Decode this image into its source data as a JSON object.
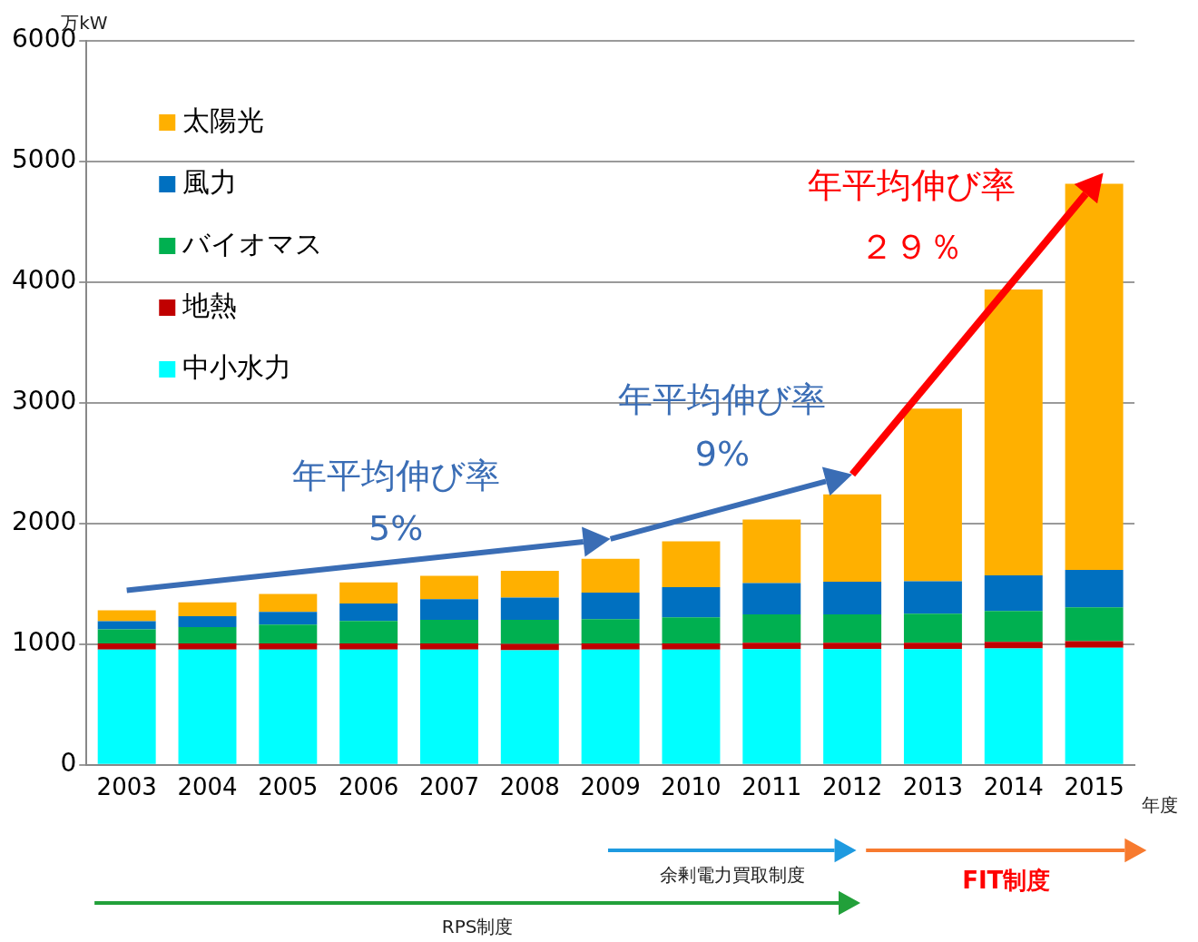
{
  "chart_data": {
    "type": "bar",
    "stacked": true,
    "categories": [
      "2003",
      "2004",
      "2005",
      "2006",
      "2007",
      "2008",
      "2009",
      "2010",
      "2011",
      "2012",
      "2013",
      "2014",
      "2015"
    ],
    "x_label": "年度",
    "y_label": "万kW",
    "ylim": [
      0,
      6000
    ],
    "yticks": [
      0,
      1000,
      2000,
      3000,
      4000,
      5000,
      6000
    ],
    "grid": true,
    "legend": "top-left",
    "series": [
      {
        "name": "中小水力",
        "color": "#00ffff",
        "values": [
          955,
          955,
          955,
          955,
          955,
          950,
          955,
          955,
          960,
          960,
          960,
          965,
          970
        ]
      },
      {
        "name": "地熱",
        "color": "#c00000",
        "values": [
          52,
          52,
          52,
          52,
          52,
          52,
          52,
          52,
          52,
          52,
          52,
          55,
          55
        ]
      },
      {
        "name": "バイオマス",
        "color": "#00b050",
        "values": [
          115,
          135,
          155,
          185,
          195,
          200,
          200,
          215,
          235,
          235,
          240,
          255,
          280
        ]
      },
      {
        "name": "風力",
        "color": "#0070c0",
        "values": [
          68,
          90,
          105,
          145,
          170,
          185,
          220,
          250,
          260,
          270,
          270,
          295,
          310
        ]
      },
      {
        "name": "太陽光",
        "color": "#ffb000",
        "values": [
          90,
          115,
          150,
          175,
          195,
          220,
          280,
          380,
          525,
          725,
          1430,
          2370,
          3200
        ]
      }
    ],
    "annotations": [
      {
        "text": "年平均伸び率",
        "value_text": "5%",
        "from": "2003",
        "to": "2009",
        "color": "#3a6db5"
      },
      {
        "text": "年平均伸び率",
        "value_text": "9%",
        "from": "2009",
        "to": "2012",
        "color": "#3a6db5"
      },
      {
        "text": "年平均伸び率",
        "value_text": "２９％",
        "from": "2012",
        "to": "2015",
        "color": "#ff0000"
      }
    ],
    "periods": [
      {
        "label": "余剰電力買取制度",
        "from": "2009",
        "to": "2012",
        "color": "#1e9ae0"
      },
      {
        "label": "FIT制度",
        "from": "2012",
        "to": "2015",
        "color": "#f77a2f"
      },
      {
        "label": "RPS制度",
        "from": "2003",
        "to": "2012",
        "color": "#22a03a"
      }
    ]
  }
}
